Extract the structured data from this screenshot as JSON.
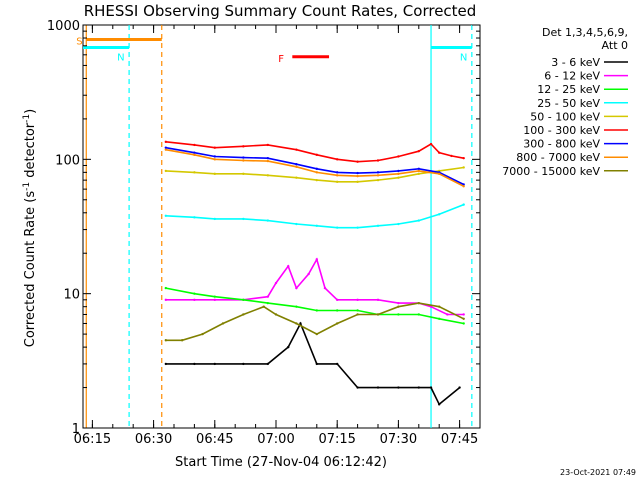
{
  "chart_data": {
    "type": "line",
    "title": "RHESSI Observing Summary Count Rates, Corrected",
    "xlabel": "Start Time (27-Nov-04 06:12:42)",
    "ylabel_main": "Corrected Count Rate (s",
    "ylabel_exp1": "-1",
    "ylabel_mid": " detector",
    "ylabel_exp2": "-1",
    "ylabel_end": ")",
    "ylabel": "Corrected Count Rate (s-1 detector-1)",
    "yscale": "log",
    "ylim": [
      1,
      1000
    ],
    "xlim": [
      "06:12:42",
      "07:50:00"
    ],
    "x_ticks": [
      "06:15",
      "06:30",
      "06:45",
      "07:00",
      "07:15",
      "07:30",
      "07:45"
    ],
    "y_ticks": [
      "1",
      "10",
      "100",
      "1000"
    ],
    "legend_header": [
      "Det 1,3,4,5,6,9,",
      "Att 0"
    ],
    "legend_position": "right",
    "grid": false,
    "series": [
      {
        "name": "3 - 6 keV",
        "color": "#000000",
        "x": [
          "06:33",
          "06:40",
          "06:45",
          "06:52",
          "06:58",
          "07:03",
          "07:06",
          "07:10",
          "07:15",
          "07:20",
          "07:25",
          "07:30",
          "07:35",
          "07:38",
          "07:40",
          "07:45"
        ],
        "y": [
          3,
          3,
          3,
          3,
          3,
          4,
          6,
          3,
          3,
          2,
          2,
          2,
          2,
          2,
          1.5,
          2
        ]
      },
      {
        "name": "6 - 12 keV",
        "color": "#ff00ff",
        "x": [
          "06:33",
          "06:40",
          "06:45",
          "06:52",
          "06:58",
          "07:00",
          "07:03",
          "07:05",
          "07:08",
          "07:10",
          "07:12",
          "07:15",
          "07:20",
          "07:25",
          "07:30",
          "07:35",
          "07:38",
          "07:42",
          "07:46"
        ],
        "y": [
          9,
          9,
          9,
          9,
          9.5,
          12,
          16,
          11,
          14,
          18,
          11,
          9,
          9,
          9,
          8.5,
          8.5,
          8,
          7,
          7
        ]
      },
      {
        "name": "12 - 25 keV",
        "color": "#00ff00",
        "x": [
          "06:33",
          "06:40",
          "06:45",
          "06:52",
          "06:58",
          "07:05",
          "07:10",
          "07:15",
          "07:20",
          "07:25",
          "07:30",
          "07:35",
          "07:40",
          "07:46"
        ],
        "y": [
          11,
          10,
          9.5,
          9,
          8.5,
          8,
          7.5,
          7.5,
          7.5,
          7,
          7,
          7,
          6.5,
          6
        ]
      },
      {
        "name": "25 - 50 keV",
        "color": "#00ffff",
        "x": [
          "06:33",
          "06:40",
          "06:45",
          "06:52",
          "06:58",
          "07:05",
          "07:10",
          "07:15",
          "07:20",
          "07:25",
          "07:30",
          "07:35",
          "07:40",
          "07:46"
        ],
        "y": [
          38,
          37,
          36,
          36,
          35,
          33,
          32,
          31,
          31,
          32,
          33,
          35,
          39,
          46
        ]
      },
      {
        "name": "50 - 100 keV",
        "color": "#d4c800",
        "x": [
          "06:33",
          "06:40",
          "06:45",
          "06:52",
          "06:58",
          "07:05",
          "07:10",
          "07:15",
          "07:20",
          "07:25",
          "07:30",
          "07:35",
          "07:40",
          "07:46"
        ],
        "y": [
          82,
          80,
          78,
          78,
          76,
          73,
          70,
          68,
          68,
          70,
          73,
          78,
          82,
          87
        ]
      },
      {
        "name": "100 - 300 keV",
        "color": "#ff0000",
        "x": [
          "06:33",
          "06:40",
          "06:45",
          "06:52",
          "06:58",
          "07:05",
          "07:10",
          "07:15",
          "07:20",
          "07:25",
          "07:30",
          "07:35",
          "07:38",
          "07:40",
          "07:43",
          "07:46"
        ],
        "y": [
          135,
          128,
          122,
          125,
          128,
          118,
          108,
          100,
          96,
          98,
          105,
          115,
          130,
          112,
          106,
          102
        ]
      },
      {
        "name": "300 - 800 keV",
        "color": "#0000ff",
        "x": [
          "06:33",
          "06:40",
          "06:45",
          "06:52",
          "06:58",
          "07:05",
          "07:10",
          "07:15",
          "07:20",
          "07:25",
          "07:30",
          "07:35",
          "07:40",
          "07:46"
        ],
        "y": [
          122,
          112,
          105,
          103,
          102,
          92,
          85,
          80,
          79,
          80,
          82,
          85,
          80,
          65
        ]
      },
      {
        "name": "800 - 7000 keV",
        "color": "#ff8c00",
        "x": [
          "06:33",
          "06:40",
          "06:45",
          "06:52",
          "06:58",
          "07:05",
          "07:10",
          "07:15",
          "07:20",
          "07:25",
          "07:30",
          "07:35",
          "07:40",
          "07:46"
        ],
        "y": [
          118,
          108,
          100,
          98,
          97,
          88,
          80,
          76,
          75,
          76,
          78,
          82,
          78,
          63
        ]
      },
      {
        "name": "7000 - 15000 keV",
        "color": "#808000",
        "x": [
          "06:33",
          "06:37",
          "06:42",
          "06:47",
          "06:52",
          "06:57",
          "07:00",
          "07:05",
          "07:10",
          "07:15",
          "07:20",
          "07:25",
          "07:30",
          "07:35",
          "07:40",
          "07:46"
        ],
        "y": [
          4.5,
          4.5,
          5,
          6,
          7,
          8,
          7,
          6,
          5,
          6,
          7,
          7,
          8,
          8.5,
          8,
          6.5
        ]
      }
    ],
    "annotations": [
      {
        "label": "S",
        "color": "#ff8c00",
        "x_start": "06:13:30",
        "x_end": "06:32:00",
        "y": 780
      },
      {
        "label": "N",
        "color": "#00ffff",
        "x_start": "06:12:42",
        "x_end": "06:24:00",
        "y": 680
      },
      {
        "label": "N",
        "color": "#00ffff",
        "x_start": "07:38:00",
        "x_end": "07:48:00",
        "y": 680
      },
      {
        "label": "F",
        "color": "#ff0000",
        "x_start": "07:04:00",
        "x_end": "07:13:00",
        "y": 580
      }
    ],
    "vertical_markers": [
      {
        "color": "#ff8c00",
        "style": "solid",
        "x": "06:13:30"
      },
      {
        "color": "#00ffff",
        "style": "dashed",
        "x": "06:24:00"
      },
      {
        "color": "#ff8c00",
        "style": "dashed",
        "x": "06:32:00"
      },
      {
        "color": "#00ffff",
        "style": "solid",
        "x": "07:38:00"
      },
      {
        "color": "#00ffff",
        "style": "dashed",
        "x": "07:48:00"
      }
    ]
  },
  "timestamp": "23-Oct-2021 07:49"
}
